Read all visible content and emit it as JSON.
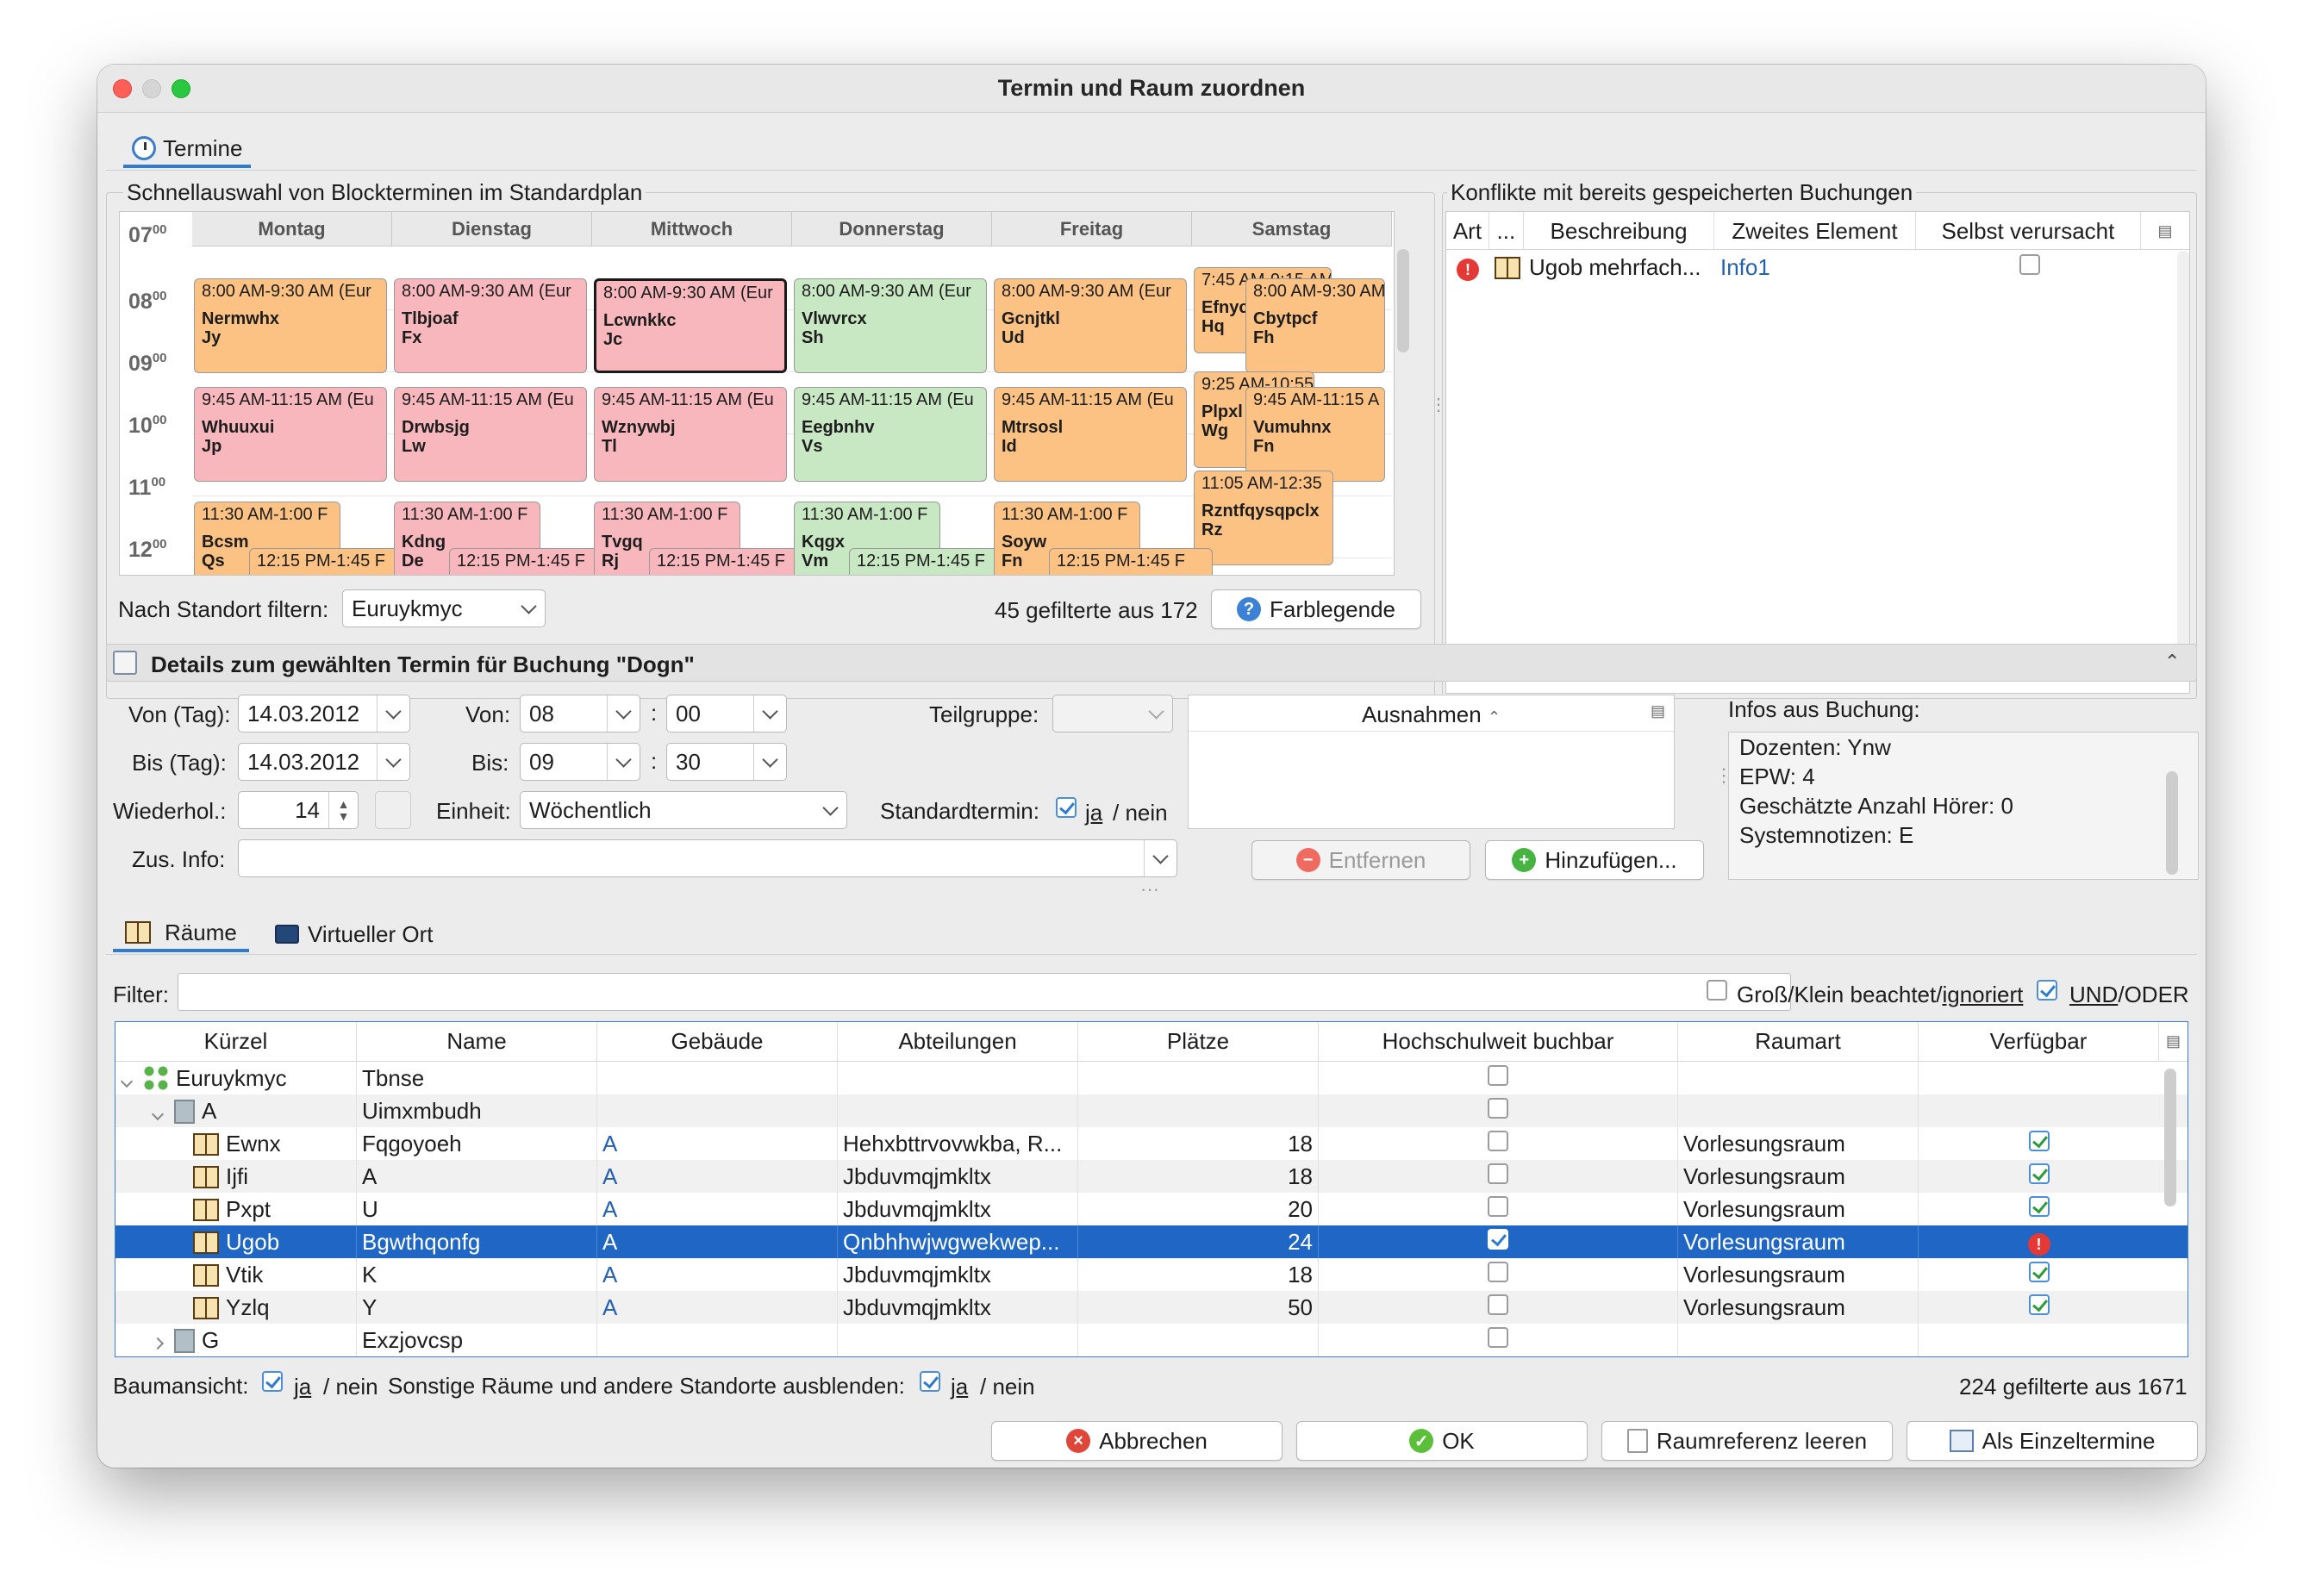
{
  "window": {
    "title": "Termin und Raum zuordnen"
  },
  "top_tab": {
    "label": "Termine"
  },
  "quick": {
    "title": "Schnellauswahl von Blockterminen im Standardplan",
    "days": [
      "Montag",
      "Dienstag",
      "Mittwoch",
      "Donnerstag",
      "Freitag",
      "Samstag"
    ],
    "hours": [
      {
        "h": "07",
        "m": "00"
      },
      {
        "h": "08",
        "m": "00"
      },
      {
        "h": "09",
        "m": "00"
      },
      {
        "h": "10",
        "m": "00"
      },
      {
        "h": "11",
        "m": "00"
      },
      {
        "h": "12",
        "m": "00"
      }
    ],
    "events": [
      {
        "time": "8:00 AM-9:30 AM (Eur",
        "name": "Nermwhx",
        "sub": "Jy"
      },
      {
        "time": "8:00 AM-9:30 AM (Eur",
        "name": "Tlbjoaf",
        "sub": "Fx"
      },
      {
        "time": "8:00 AM-9:30 AM (Eur",
        "name": "Lcwnkkc",
        "sub": "Jc"
      },
      {
        "time": "8:00 AM-9:30 AM (Eur",
        "name": "Vlwvrcx",
        "sub": "Sh"
      },
      {
        "time": "8:00 AM-9:30 AM (Eur",
        "name": "Gcnjtkl",
        "sub": "Ud"
      },
      {
        "time": "7:45 AM-9:15 AM",
        "name": "Efnyc",
        "sub": "Hq"
      },
      {
        "time": "8:00 AM-9:30 AM",
        "name": "Cbytpcf",
        "sub": "Fh"
      },
      {
        "time": "9:45 AM-11:15 AM (Eu",
        "name": "Whuuxui",
        "sub": "Jp"
      },
      {
        "time": "9:45 AM-11:15 AM (Eu",
        "name": "Drwbsjg",
        "sub": "Lw"
      },
      {
        "time": "9:45 AM-11:15 AM (Eu",
        "name": "Wznywbj",
        "sub": "Tl"
      },
      {
        "time": "9:45 AM-11:15 AM (Eu",
        "name": "Eegbnhv",
        "sub": "Vs"
      },
      {
        "time": "9:45 AM-11:15 AM (Eu",
        "name": "Mtrsosl",
        "sub": "Id"
      },
      {
        "time": "9:25 AM-10:55 A",
        "name": "Plpxl",
        "sub": "Wg"
      },
      {
        "time": "9:45 AM-11:15 A",
        "name": "Vumuhnx",
        "sub": "Fn"
      },
      {
        "time": "11:05 AM-12:35",
        "name": "Rzntfqysqpclx",
        "sub": "Rz"
      },
      {
        "time": "11:30 AM-1:00 F",
        "name": "Bcsm",
        "sub": "Qs"
      },
      {
        "time": "12:15 PM-1:45 F",
        "name": "",
        "sub": ""
      },
      {
        "time": "11:30 AM-1:00 F",
        "name": "Kdng",
        "sub": "De"
      },
      {
        "time": "12:15 PM-1:45 F",
        "name": "",
        "sub": ""
      },
      {
        "time": "11:30 AM-1:00 F",
        "name": "Tvgq",
        "sub": "Rj"
      },
      {
        "time": "12:15 PM-1:45 F",
        "name": "",
        "sub": ""
      },
      {
        "time": "11:30 AM-1:00 F",
        "name": "Kqgx",
        "sub": "Vm"
      },
      {
        "time": "12:15 PM-1:45 F",
        "name": "",
        "sub": ""
      },
      {
        "time": "11:30 AM-1:00 F",
        "name": "Soyw",
        "sub": "Fn"
      },
      {
        "time": "12:15 PM-1:45 F",
        "name": "",
        "sub": ""
      }
    ],
    "filter_label": "Nach Standort filtern:",
    "filter_value": "Euruykmyc",
    "count_text": "45 gefilterte aus 172",
    "legend_button": "Farblegende"
  },
  "conflicts": {
    "title": "Konflikte mit bereits gespeicherten Buchungen",
    "columns": [
      "Art",
      "...",
      "Beschreibung",
      "Zweites Element",
      "Selbst verursacht"
    ],
    "rows": [
      {
        "desc": "Ugob mehrfach...",
        "second": "Info1"
      }
    ]
  },
  "details": {
    "title": "Details zum gewählten Termin für Buchung \"Dogn\"",
    "von_tag_label": "Von (Tag):",
    "von_tag": "14.03.2012",
    "bis_tag_label": "Bis (Tag):",
    "bis_tag": "14.03.2012",
    "wiederhol_label": "Wiederhol.:",
    "wiederhol": "14",
    "von_label": "Von:",
    "von_h": "08",
    "von_m": "00",
    "bis_label": "Bis:",
    "bis_h": "09",
    "bis_m": "30",
    "colon": ":",
    "einheit_label": "Einheit:",
    "einheit": "Wöchentlich",
    "teilgruppe_label": "Teilgruppe:",
    "standard_label": "Standardtermin:",
    "ja": "ja",
    "slash_nein": "/ nein",
    "zus_label": "Zus. Info:",
    "ausnahmen": "Ausnahmen",
    "entfernen": "Entfernen",
    "hinzufuegen": "Hinzufügen...",
    "infos_title": "Infos aus Buchung:",
    "infos": [
      "Dozenten: Ynw",
      "EPW: 4",
      "Geschätzte Anzahl Hörer: 0",
      "Systemnotizen: E"
    ]
  },
  "rooms": {
    "tab_rooms": "Räume",
    "tab_virtual": "Virtueller Ort",
    "filter_label": "Filter:",
    "case_label_a": "Groß/Klein beachtet/",
    "case_label_b": "ignoriert",
    "undoder_a": "UND",
    "undoder_b": "/ODER",
    "columns": [
      "Kürzel",
      "Name",
      "Gebäude",
      "Abteilungen",
      "Plätze",
      "Hochschulweit buchbar",
      "Raumart",
      "Verfügbar"
    ],
    "rows": [
      {
        "kind": "site",
        "kurz": "Euruykmyc",
        "name": "Tbnse",
        "geb": "",
        "abt": "",
        "pl": "",
        "hoch": false,
        "art": "",
        "verf": ""
      },
      {
        "kind": "building",
        "kurz": "A",
        "name": "Uimxmbudh",
        "geb": "",
        "abt": "",
        "pl": "",
        "hoch": false,
        "art": "",
        "verf": ""
      },
      {
        "kind": "room",
        "kurz": "Ewnx",
        "name": "Fqgoyoeh",
        "geb": "A",
        "abt": "Hehxbttrvovwkba, R...",
        "pl": "18",
        "hoch": false,
        "art": "Vorlesungsraum",
        "verf": "ok"
      },
      {
        "kind": "room",
        "kurz": "Ijfi",
        "name": "A",
        "geb": "A",
        "abt": "Jbduvmqjmkltx",
        "pl": "18",
        "hoch": false,
        "art": "Vorlesungsraum",
        "verf": "ok"
      },
      {
        "kind": "room",
        "kurz": "Pxpt",
        "name": "U",
        "geb": "A",
        "abt": "Jbduvmqjmkltx",
        "pl": "20",
        "hoch": false,
        "art": "Vorlesungsraum",
        "verf": "ok"
      },
      {
        "kind": "room",
        "kurz": "Ugob",
        "name": "Bgwthqonfg",
        "geb": "A",
        "abt": "Qnbhhwjwgwekwep...",
        "pl": "24",
        "hoch": true,
        "art": "Vorlesungsraum",
        "verf": "conflict"
      },
      {
        "kind": "room",
        "kurz": "Vtik",
        "name": "K",
        "geb": "A",
        "abt": "Jbduvmqjmkltx",
        "pl": "18",
        "hoch": false,
        "art": "Vorlesungsraum",
        "verf": "ok"
      },
      {
        "kind": "room",
        "kurz": "Yzlq",
        "name": "Y",
        "geb": "A",
        "abt": "Jbduvmqjmkltx",
        "pl": "50",
        "hoch": false,
        "art": "Vorlesungsraum",
        "verf": "ok"
      },
      {
        "kind": "building",
        "kurz": "G",
        "name": "Exzjovcsp",
        "geb": "",
        "abt": "",
        "pl": "",
        "hoch": false,
        "art": "",
        "verf": ""
      }
    ],
    "baum_label": "Baumansicht:",
    "sonstige_label": "Sonstige Räume und andere Standorte ausblenden:",
    "count_text": "224 gefilterte aus 1671"
  },
  "buttons": {
    "cancel": "Abbrechen",
    "ok": "OK",
    "clear": "Raumreferenz leeren",
    "single": "Als Einzeltermine"
  },
  "colors": {
    "orange": "#fbc284",
    "pink": "#f7b7bd",
    "green": "#c8e7c3",
    "selection": "#1f66c5"
  }
}
